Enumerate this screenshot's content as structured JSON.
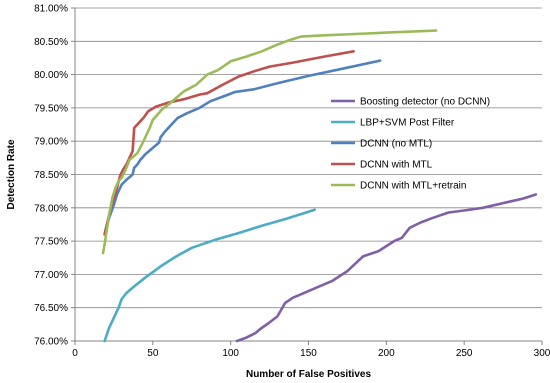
{
  "chart_data": {
    "type": "line",
    "title": "",
    "xlabel": "Number of False Positives",
    "ylabel": "Detection Rate",
    "xlim": [
      0,
      300
    ],
    "ylim": [
      76.0,
      81.0
    ],
    "x_ticks": [
      "0",
      "50",
      "100",
      "150",
      "200",
      "250",
      "300"
    ],
    "y_ticks": [
      "76.00%",
      "76.50%",
      "77.00%",
      "77.50%",
      "78.00%",
      "78.50%",
      "79.00%",
      "79.50%",
      "80.00%",
      "80.50%",
      "81.00%"
    ],
    "grid": "horizontal",
    "legend_position": "right",
    "series": [
      {
        "name": "Boosting detector (no DCNN)",
        "color": "#7f5fa6",
        "points": [
          [
            104,
            76.0
          ],
          [
            110,
            76.05
          ],
          [
            116,
            76.12
          ],
          [
            119,
            76.18
          ],
          [
            125,
            76.28
          ],
          [
            130,
            76.37
          ],
          [
            135,
            76.57
          ],
          [
            140,
            76.65
          ],
          [
            145,
            76.7
          ],
          [
            155,
            76.8
          ],
          [
            165,
            76.9
          ],
          [
            175,
            77.05
          ],
          [
            185,
            77.27
          ],
          [
            195,
            77.35
          ],
          [
            205,
            77.5
          ],
          [
            210,
            77.55
          ],
          [
            215,
            77.7
          ],
          [
            222,
            77.78
          ],
          [
            230,
            77.85
          ],
          [
            240,
            77.93
          ],
          [
            250,
            77.96
          ],
          [
            262,
            78.0
          ],
          [
            275,
            78.07
          ],
          [
            288,
            78.14
          ],
          [
            296,
            78.2
          ]
        ]
      },
      {
        "name": "LBP+SVM Post Filter",
        "color": "#4bacc6",
        "points": [
          [
            19,
            76.0
          ],
          [
            22,
            76.2
          ],
          [
            25,
            76.35
          ],
          [
            28,
            76.5
          ],
          [
            30,
            76.63
          ],
          [
            33,
            76.72
          ],
          [
            38,
            76.82
          ],
          [
            45,
            76.95
          ],
          [
            55,
            77.12
          ],
          [
            65,
            77.27
          ],
          [
            75,
            77.4
          ],
          [
            90,
            77.52
          ],
          [
            105,
            77.62
          ],
          [
            120,
            77.73
          ],
          [
            135,
            77.83
          ],
          [
            154,
            77.97
          ]
        ]
      },
      {
        "name": "DCNN (no MTL)",
        "color": "#4f81bd",
        "points": [
          [
            19,
            77.6
          ],
          [
            20,
            77.7
          ],
          [
            22,
            77.85
          ],
          [
            25,
            78.05
          ],
          [
            27,
            78.2
          ],
          [
            30,
            78.35
          ],
          [
            33,
            78.42
          ],
          [
            35,
            78.46
          ],
          [
            37,
            78.5
          ],
          [
            38,
            78.6
          ],
          [
            40,
            78.65
          ],
          [
            42,
            78.72
          ],
          [
            45,
            78.8
          ],
          [
            50,
            78.9
          ],
          [
            54,
            78.98
          ],
          [
            55,
            79.06
          ],
          [
            58,
            79.15
          ],
          [
            62,
            79.25
          ],
          [
            66,
            79.35
          ],
          [
            72,
            79.42
          ],
          [
            80,
            79.5
          ],
          [
            87,
            79.6
          ],
          [
            95,
            79.67
          ],
          [
            103,
            79.74
          ],
          [
            115,
            79.78
          ],
          [
            130,
            79.87
          ],
          [
            150,
            79.98
          ],
          [
            170,
            80.08
          ],
          [
            196,
            80.21
          ]
        ]
      },
      {
        "name": "DCNN with MTL",
        "color": "#c0504d",
        "points": [
          [
            19,
            77.6
          ],
          [
            21,
            77.8
          ],
          [
            23,
            78.0
          ],
          [
            25,
            78.15
          ],
          [
            27,
            78.3
          ],
          [
            29,
            78.48
          ],
          [
            31,
            78.58
          ],
          [
            33,
            78.65
          ],
          [
            35,
            78.75
          ],
          [
            37,
            78.85
          ],
          [
            38,
            79.2
          ],
          [
            40,
            79.25
          ],
          [
            42,
            79.3
          ],
          [
            44,
            79.35
          ],
          [
            47,
            79.45
          ],
          [
            52,
            79.52
          ],
          [
            60,
            79.58
          ],
          [
            70,
            79.63
          ],
          [
            80,
            79.7
          ],
          [
            85,
            79.72
          ],
          [
            95,
            79.85
          ],
          [
            105,
            79.97
          ],
          [
            115,
            80.05
          ],
          [
            125,
            80.12
          ],
          [
            140,
            80.18
          ],
          [
            160,
            80.27
          ],
          [
            179,
            80.35
          ]
        ]
      },
      {
        "name": "DCNN with MTL+retrain",
        "color": "#9bbb59",
        "points": [
          [
            18,
            77.32
          ],
          [
            19,
            77.45
          ],
          [
            20,
            77.6
          ],
          [
            21,
            77.75
          ],
          [
            22,
            77.9
          ],
          [
            24,
            78.15
          ],
          [
            26,
            78.3
          ],
          [
            28,
            78.4
          ],
          [
            30,
            78.45
          ],
          [
            33,
            78.6
          ],
          [
            35,
            78.72
          ],
          [
            38,
            78.78
          ],
          [
            40,
            78.82
          ],
          [
            43,
            78.95
          ],
          [
            46,
            79.1
          ],
          [
            48,
            79.2
          ],
          [
            50,
            79.32
          ],
          [
            53,
            79.4
          ],
          [
            56,
            79.48
          ],
          [
            60,
            79.55
          ],
          [
            65,
            79.65
          ],
          [
            70,
            79.75
          ],
          [
            78,
            79.85
          ],
          [
            85,
            80.0
          ],
          [
            92,
            80.07
          ],
          [
            100,
            80.2
          ],
          [
            110,
            80.27
          ],
          [
            120,
            80.35
          ],
          [
            130,
            80.45
          ],
          [
            138,
            80.52
          ],
          [
            145,
            80.57
          ],
          [
            160,
            80.59
          ],
          [
            180,
            80.61
          ],
          [
            200,
            80.63
          ],
          [
            220,
            80.65
          ],
          [
            232,
            80.66
          ]
        ]
      }
    ]
  }
}
